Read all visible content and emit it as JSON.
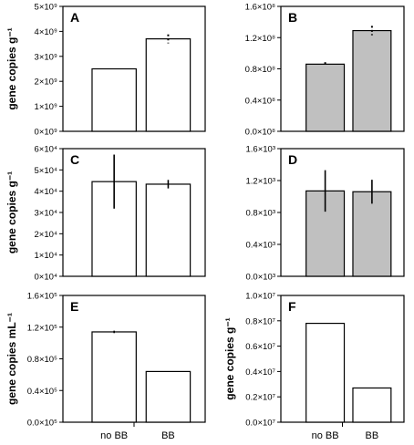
{
  "chart_data": [
    {
      "id": "A",
      "type": "bar",
      "panel_label": "A",
      "ylabel": "gene copies g⁻¹",
      "ylim": [
        0,
        5000000000
      ],
      "yticks": [
        {
          "value": 0,
          "label": "0×10⁹"
        },
        {
          "value": 1000000000,
          "label": "1×10⁹"
        },
        {
          "value": 2000000000,
          "label": "2×10⁹"
        },
        {
          "value": 3000000000,
          "label": "3×10⁹"
        },
        {
          "value": 4000000000,
          "label": "4×10⁹"
        },
        {
          "value": 5000000000,
          "label": "5×10⁹"
        }
      ],
      "categories": [
        "no BB",
        "BB"
      ],
      "values": [
        2500000000,
        3700000000
      ],
      "errors": [
        0,
        180000000
      ],
      "error_style": "dotted",
      "fill": "#ffffff"
    },
    {
      "id": "B",
      "type": "bar",
      "panel_label": "B",
      "ylabel": "",
      "ylim": [
        0,
        160000000
      ],
      "yticks": [
        {
          "value": 0,
          "label": "0.0×10⁸"
        },
        {
          "value": 40000000,
          "label": "0.4×10⁸"
        },
        {
          "value": 80000000,
          "label": "0.8×10⁸"
        },
        {
          "value": 120000000,
          "label": "1.2×10⁸"
        },
        {
          "value": 160000000,
          "label": "1.6×10⁸"
        }
      ],
      "categories": [
        "no BB",
        "BB"
      ],
      "values": [
        86000000,
        129000000
      ],
      "errors": [
        2500000,
        6000000
      ],
      "error_style": "dotted",
      "fill": "#c0c0c0"
    },
    {
      "id": "C",
      "type": "bar",
      "panel_label": "C",
      "ylabel": "gene copies g⁻¹",
      "ylim": [
        0,
        60000
      ],
      "yticks": [
        {
          "value": 0,
          "label": "0×10⁴"
        },
        {
          "value": 10000,
          "label": "1×10⁴"
        },
        {
          "value": 20000,
          "label": "2×10⁴"
        },
        {
          "value": 30000,
          "label": "3×10⁴"
        },
        {
          "value": 40000,
          "label": "4×10⁴"
        },
        {
          "value": 50000,
          "label": "5×10⁴"
        },
        {
          "value": 60000,
          "label": "6×10⁴"
        }
      ],
      "categories": [
        "no BB",
        "BB"
      ],
      "values": [
        44500,
        43300
      ],
      "errors": [
        12700,
        2000
      ],
      "error_style": "solid",
      "fill": "#ffffff"
    },
    {
      "id": "D",
      "type": "bar",
      "panel_label": "D",
      "ylabel": "",
      "ylim": [
        0,
        1600
      ],
      "yticks": [
        {
          "value": 0,
          "label": "0.0×10³"
        },
        {
          "value": 400,
          "label": "0.4×10³"
        },
        {
          "value": 800,
          "label": "0.8×10³"
        },
        {
          "value": 1200,
          "label": "1.2×10³"
        },
        {
          "value": 1600,
          "label": "1.6×10³"
        }
      ],
      "categories": [
        "no BB",
        "BB"
      ],
      "values": [
        1070,
        1060
      ],
      "errors": [
        260,
        150
      ],
      "error_style": "solid",
      "fill": "#c0c0c0"
    },
    {
      "id": "E",
      "type": "bar",
      "panel_label": "E",
      "ylabel": "gene copies mL⁻¹",
      "ylim": [
        0,
        160000
      ],
      "yticks": [
        {
          "value": 0,
          "label": "0.0×10⁵"
        },
        {
          "value": 40000,
          "label": "0.4×10⁵"
        },
        {
          "value": 80000,
          "label": "0.8×10⁵"
        },
        {
          "value": 120000,
          "label": "1.2×10⁵"
        },
        {
          "value": 160000,
          "label": "1.6×10⁵"
        }
      ],
      "categories": [
        "no BB",
        "BB"
      ],
      "values": [
        114000,
        64000
      ],
      "errors": [
        1500,
        0
      ],
      "error_style": "solid",
      "fill": "#ffffff"
    },
    {
      "id": "F",
      "type": "bar",
      "panel_label": "F",
      "ylabel": "gene copies g⁻¹",
      "ylim": [
        0,
        10000000
      ],
      "yticks": [
        {
          "value": 0,
          "label": "0.0×10⁷"
        },
        {
          "value": 2000000,
          "label": "0.2×10⁷"
        },
        {
          "value": 4000000,
          "label": "0.4×10⁷"
        },
        {
          "value": 6000000,
          "label": "0.6×10⁷"
        },
        {
          "value": 8000000,
          "label": "0.8×10⁷"
        },
        {
          "value": 10000000,
          "label": "1.0×10⁷"
        }
      ],
      "categories": [
        "no BB",
        "BB"
      ],
      "values": [
        7800000,
        2700000
      ],
      "errors": [
        0,
        0
      ],
      "error_style": "solid",
      "fill": "#ffffff"
    }
  ]
}
